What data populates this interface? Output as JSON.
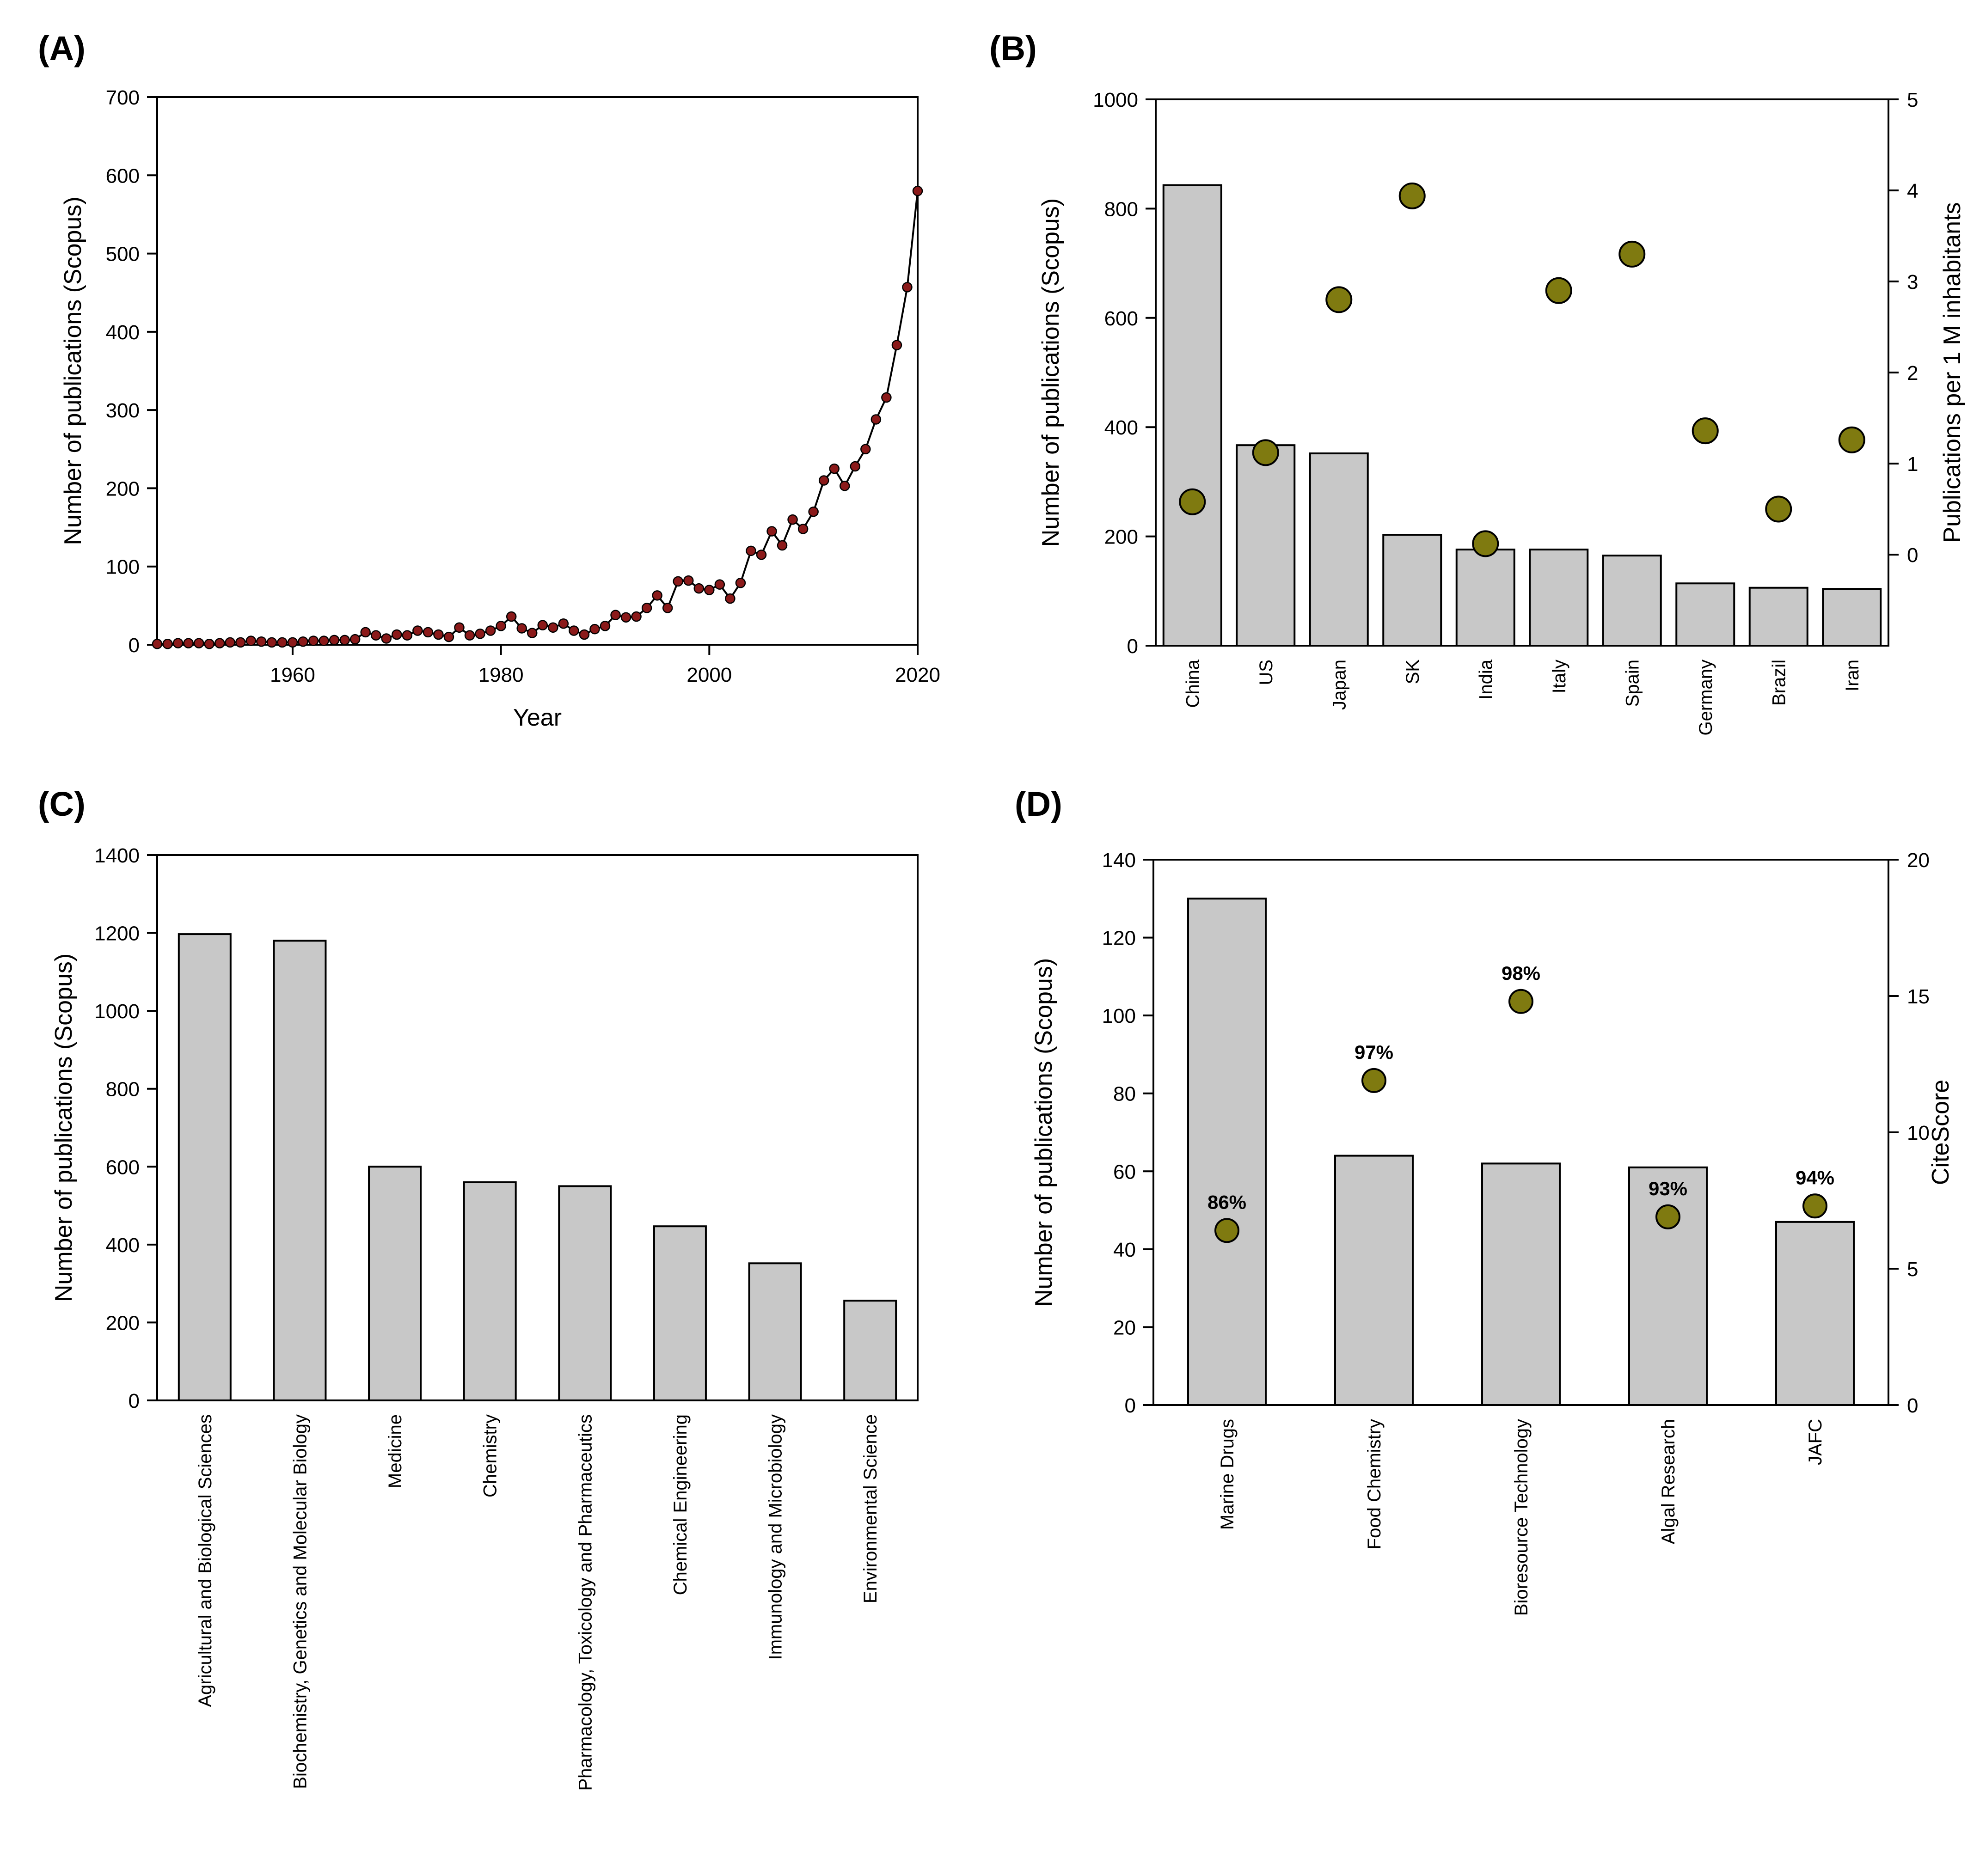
{
  "colors": {
    "bar_fill": "#c8c8c8",
    "bar_stroke": "#000000",
    "dot_fill": "#7f7a10",
    "line_marker_fill": "#8b1a1a",
    "line_color": "#000000"
  },
  "chart_data": [
    {
      "panel": "(A)",
      "type": "line",
      "xlabel": "Year",
      "ylabel": "Number of publications (Scopus)",
      "xlim": [
        1947,
        2020
      ],
      "ylim": [
        0,
        700
      ],
      "xticks": [
        1960,
        1980,
        2000,
        2020
      ],
      "yticks": [
        0,
        100,
        200,
        300,
        400,
        500,
        600,
        700
      ],
      "x": [
        1947,
        1948,
        1949,
        1950,
        1951,
        1952,
        1953,
        1954,
        1955,
        1956,
        1957,
        1958,
        1959,
        1960,
        1961,
        1962,
        1963,
        1964,
        1965,
        1966,
        1967,
        1968,
        1969,
        1970,
        1971,
        1972,
        1973,
        1974,
        1975,
        1976,
        1977,
        1978,
        1979,
        1980,
        1981,
        1982,
        1983,
        1984,
        1985,
        1986,
        1987,
        1988,
        1989,
        1990,
        1991,
        1992,
        1993,
        1994,
        1995,
        1996,
        1997,
        1998,
        1999,
        2000,
        2001,
        2002,
        2003,
        2004,
        2005,
        2006,
        2007,
        2008,
        2009,
        2010,
        2011,
        2012,
        2013,
        2014,
        2015,
        2016,
        2017,
        2018,
        2019,
        2020
      ],
      "values": [
        1,
        1,
        2,
        2,
        2,
        1,
        2,
        3,
        3,
        5,
        4,
        3,
        3,
        3,
        4,
        5,
        5,
        6,
        6,
        7,
        16,
        12,
        8,
        13,
        12,
        18,
        16,
        13,
        10,
        22,
        12,
        14,
        18,
        24,
        36,
        21,
        15,
        25,
        22,
        27,
        18,
        13,
        20,
        24,
        38,
        35,
        36,
        47,
        63,
        47,
        81,
        82,
        72,
        70,
        77,
        59,
        79,
        120,
        115,
        145,
        127,
        160,
        148,
        170,
        210,
        225,
        203,
        228,
        250,
        288,
        316,
        383,
        457,
        580
      ]
    },
    {
      "panel": "(B)",
      "type": "bar",
      "ylabel": "Number of publications (Scopus)",
      "ylabel_right": "Publications per 1 M inhabitants",
      "ylim": [
        0,
        1000
      ],
      "ylim_right": [
        -1,
        5
      ],
      "yticks": [
        0,
        200,
        400,
        600,
        800,
        1000
      ],
      "yticks_right": [
        0,
        1,
        2,
        3,
        4,
        5
      ],
      "categories": [
        "China",
        "US",
        "Japan",
        "SK",
        "India",
        "Italy",
        "Spain",
        "Germany",
        "Brazil",
        "Iran"
      ],
      "series": [
        {
          "name": "Number of publications (Scopus)",
          "type": "bar",
          "axis": "left",
          "values": [
            843,
            367,
            352,
            203,
            176,
            176,
            165,
            114,
            106,
            104
          ]
        },
        {
          "name": "Publications per 1 M inhabitants",
          "type": "scatter",
          "axis": "right",
          "values": [
            0.58,
            1.12,
            2.8,
            3.94,
            0.12,
            2.9,
            3.3,
            1.36,
            0.5,
            1.26
          ]
        }
      ]
    },
    {
      "panel": "(C)",
      "type": "bar",
      "ylabel": "Number of publications (Scopus)",
      "ylim": [
        0,
        1400
      ],
      "yticks": [
        0,
        200,
        400,
        600,
        800,
        1000,
        1200,
        1400
      ],
      "categories": [
        "Agricultural and Biological Sciences",
        "Biochemistry, Genetics and Molecular Biology",
        "Medicine",
        "Chemistry",
        "Pharmacology, Toxicology and Pharmaceutics",
        "Chemical Engineering",
        "Immunology and Microbiology",
        "Environmental Science"
      ],
      "values": [
        1197,
        1180,
        600,
        560,
        550,
        447,
        352,
        256
      ]
    },
    {
      "panel": "(D)",
      "type": "bar",
      "ylabel": "Number of publications (Scopus)",
      "ylabel_right": "CiteScore",
      "ylim": [
        0,
        140
      ],
      "ylim_right": [
        0,
        20
      ],
      "yticks": [
        0,
        20,
        40,
        60,
        80,
        100,
        120,
        140
      ],
      "yticks_right": [
        0,
        5,
        10,
        15,
        20
      ],
      "categories": [
        "Marine Drugs",
        "Food Chemistry",
        "Bioresource Technology",
        "Algal Research",
        "JAFC"
      ],
      "series": [
        {
          "name": "Number of publications (Scopus)",
          "type": "bar",
          "axis": "left",
          "values": [
            130,
            64,
            62,
            61,
            47
          ]
        },
        {
          "name": "CiteScore",
          "type": "scatter",
          "axis": "right",
          "values": [
            6.4,
            11.9,
            14.8,
            6.9,
            7.3
          ],
          "labels": [
            "86%",
            "97%",
            "98%",
            "93%",
            "94%"
          ]
        }
      ]
    }
  ]
}
